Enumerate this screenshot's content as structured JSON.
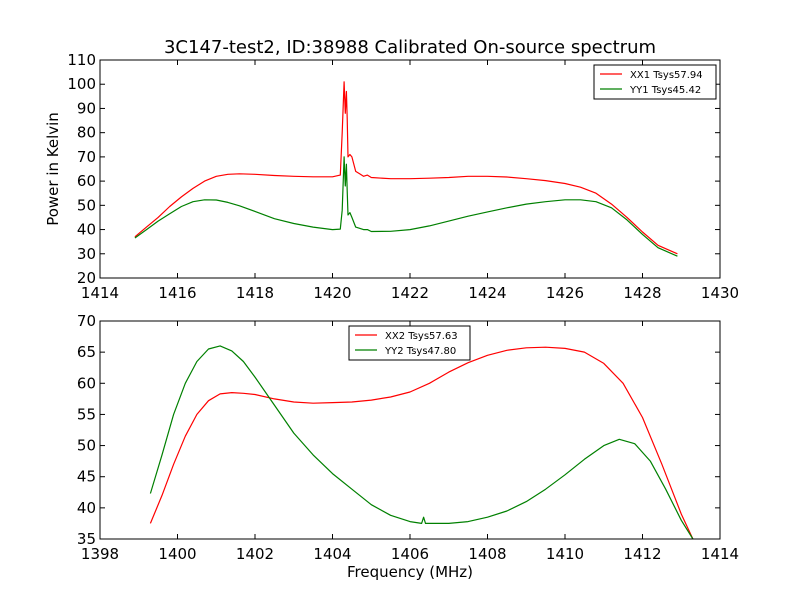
{
  "figure": {
    "title": "3C147-test2, ID:38988 Calibrated On-source spectrum"
  },
  "chart_data": [
    {
      "type": "line",
      "title": "3C147-test2, ID:38988 Calibrated On-source spectrum",
      "xlabel": "",
      "ylabel": "Power in Kelvin",
      "xlim": [
        1414,
        1430
      ],
      "ylim": [
        20,
        110
      ],
      "xticks": [
        1414,
        1416,
        1418,
        1420,
        1422,
        1424,
        1426,
        1428,
        1430
      ],
      "yticks": [
        20,
        30,
        40,
        50,
        60,
        70,
        80,
        90,
        100,
        110
      ],
      "grid": false,
      "legend_position": "top-right",
      "series": [
        {
          "name": "XX1 Tsys57.94",
          "color": "#ff0000",
          "x": [
            1414.9,
            1415.2,
            1415.5,
            1415.8,
            1416.1,
            1416.4,
            1416.7,
            1417.0,
            1417.3,
            1417.6,
            1418.0,
            1418.5,
            1419.0,
            1419.5,
            1420.0,
            1420.2,
            1420.25,
            1420.3,
            1420.33,
            1420.36,
            1420.38,
            1420.4,
            1420.45,
            1420.5,
            1420.6,
            1420.7,
            1420.8,
            1420.9,
            1421.0,
            1421.5,
            1422.0,
            1422.5,
            1423.0,
            1423.5,
            1424.0,
            1424.5,
            1425.0,
            1425.5,
            1426.0,
            1426.4,
            1426.8,
            1427.2,
            1427.6,
            1428.0,
            1428.4,
            1428.9
          ],
          "y": [
            37,
            41,
            45,
            49.5,
            53.5,
            57,
            60,
            62,
            62.8,
            63,
            62.8,
            62.3,
            62,
            61.8,
            61.8,
            62.5,
            80,
            101,
            88,
            97,
            86,
            70,
            71,
            70,
            64,
            63,
            62,
            62.5,
            61.5,
            61,
            61,
            61.2,
            61.5,
            62,
            62,
            61.7,
            61,
            60.2,
            59,
            57.5,
            55,
            50.5,
            45,
            39,
            33.5,
            30
          ]
        },
        {
          "name": "YY1 Tsys45.42",
          "color": "#008000",
          "x": [
            1414.9,
            1415.2,
            1415.5,
            1415.8,
            1416.1,
            1416.4,
            1416.7,
            1417.0,
            1417.3,
            1417.6,
            1418.0,
            1418.5,
            1419.0,
            1419.5,
            1420.0,
            1420.2,
            1420.25,
            1420.3,
            1420.33,
            1420.36,
            1420.38,
            1420.4,
            1420.45,
            1420.5,
            1420.6,
            1420.7,
            1420.8,
            1420.9,
            1421.0,
            1421.5,
            1422.0,
            1422.5,
            1423.0,
            1423.5,
            1424.0,
            1424.5,
            1425.0,
            1425.5,
            1426.0,
            1426.4,
            1426.8,
            1427.2,
            1427.6,
            1428.0,
            1428.4,
            1428.9
          ],
          "y": [
            36.5,
            40,
            43.5,
            46.5,
            49.5,
            51.5,
            52.3,
            52.2,
            51.2,
            49.8,
            47.5,
            44.5,
            42.5,
            41,
            40,
            40.2,
            48,
            70,
            58,
            67,
            56,
            46,
            47,
            45,
            41,
            40.5,
            40,
            40,
            39.2,
            39.3,
            40,
            41.5,
            43.5,
            45.5,
            47.3,
            49,
            50.5,
            51.5,
            52.3,
            52.3,
            51.5,
            49,
            44,
            38,
            32.5,
            29
          ]
        }
      ]
    },
    {
      "type": "line",
      "title": "",
      "xlabel": "Frequency (MHz)",
      "ylabel": "",
      "xlim": [
        1398,
        1414
      ],
      "ylim": [
        35,
        70
      ],
      "xticks": [
        1398,
        1400,
        1402,
        1404,
        1406,
        1408,
        1410,
        1412,
        1414
      ],
      "yticks": [
        35,
        40,
        45,
        50,
        55,
        60,
        65,
        70
      ],
      "grid": false,
      "legend_position": "top-center",
      "series": [
        {
          "name": "XX2 Tsys57.63",
          "color": "#ff0000",
          "x": [
            1399.3,
            1399.6,
            1399.9,
            1400.2,
            1400.5,
            1400.8,
            1401.1,
            1401.4,
            1401.7,
            1402.0,
            1402.5,
            1403.0,
            1403.5,
            1404.0,
            1404.5,
            1405.0,
            1405.5,
            1406.0,
            1406.5,
            1407.0,
            1407.5,
            1408.0,
            1408.5,
            1409.0,
            1409.5,
            1410.0,
            1410.5,
            1411.0,
            1411.5,
            1412.0,
            1412.5,
            1413.0,
            1413.3
          ],
          "y": [
            37.5,
            42,
            47,
            51.5,
            55,
            57.2,
            58.3,
            58.5,
            58.4,
            58.2,
            57.5,
            57,
            56.8,
            56.9,
            57,
            57.3,
            57.8,
            58.6,
            60,
            61.8,
            63.3,
            64.5,
            65.3,
            65.7,
            65.8,
            65.6,
            65,
            63.2,
            60,
            54.5,
            47,
            39,
            35
          ]
        },
        {
          "name": "YY2 Tsys47.80",
          "color": "#008000",
          "x": [
            1399.3,
            1399.6,
            1399.9,
            1400.2,
            1400.5,
            1400.8,
            1401.1,
            1401.4,
            1401.7,
            1402.0,
            1402.5,
            1403.0,
            1403.5,
            1404.0,
            1404.5,
            1405.0,
            1405.5,
            1406.0,
            1406.3,
            1406.35,
            1406.4,
            1406.5,
            1407.0,
            1407.5,
            1408.0,
            1408.5,
            1409.0,
            1409.5,
            1410.0,
            1410.5,
            1411.0,
            1411.4,
            1411.8,
            1412.2,
            1412.6,
            1413.0,
            1413.3
          ],
          "y": [
            42.3,
            48.5,
            55,
            60,
            63.5,
            65.5,
            66,
            65.2,
            63.5,
            61,
            56.5,
            52,
            48.5,
            45.5,
            43,
            40.5,
            38.8,
            37.8,
            37.5,
            38.5,
            37.5,
            37.5,
            37.5,
            37.8,
            38.5,
            39.5,
            41,
            43,
            45.3,
            47.8,
            50,
            51,
            50.3,
            47.5,
            43,
            38,
            35
          ]
        }
      ]
    }
  ]
}
